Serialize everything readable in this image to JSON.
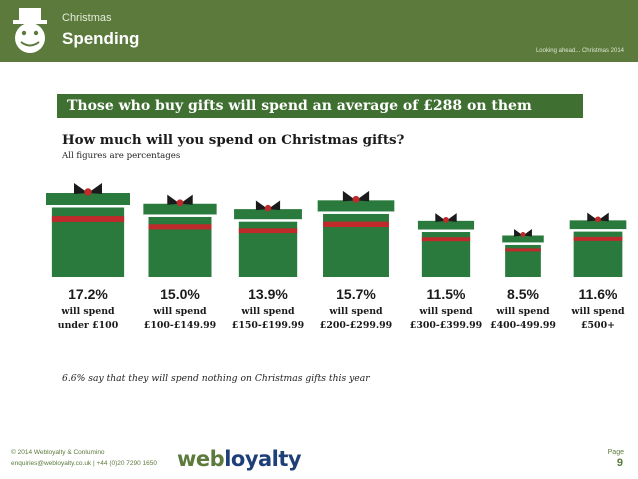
{
  "header": {
    "small_title": "Christmas",
    "big_title": "Spending",
    "right_text": "Looking ahead... Christmas 2014"
  },
  "banner": "Those who buy gifts will spend an average of £288 on them",
  "question": "How much will you spend on Christmas gifts?",
  "subtitle": "All figures are percentages",
  "note": "6.6% say that they will spend nothing on Christmas gifts this year",
  "footer": {
    "line1": "© 2014 Webloyalty & Conlumino",
    "line2": "enquiries@webloyalty.co.uk  |  +44 (0)20 7290 1650",
    "logo_part1": "web",
    "logo_part2": "loyalty",
    "page_label": "Page",
    "page_number": "9"
  },
  "colors": {
    "header_green": "#5b7a3c",
    "banner_green": "#3f6f31",
    "gift_green": "#2a7a3e",
    "ribbon_red": "#c02a2a",
    "logo_blue": "#1f3f78"
  },
  "chart_data": {
    "type": "bar",
    "categories": [
      "under £100",
      "£100-£149.99",
      "£150-£199.99",
      "£200-£299.99",
      "£300-£399.99",
      "£400-499.99",
      "£500+"
    ],
    "values": [
      17.2,
      15.0,
      13.9,
      15.7,
      11.5,
      8.5,
      11.6
    ],
    "value_labels": [
      "17.2%",
      "15.0%",
      "13.9%",
      "15.7%",
      "11.5%",
      "8.5%",
      "11.6%"
    ],
    "label_prefix": "will spend",
    "marks": "gift boxes sized by value",
    "unit": "%"
  }
}
